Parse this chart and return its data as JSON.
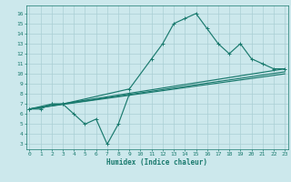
{
  "xlabel": "Humidex (Indice chaleur)",
  "bg_color": "#cce8ec",
  "line_color": "#1a7a6e",
  "grid_color": "#aacfd4",
  "line1_x": [
    0,
    1,
    2,
    3,
    4,
    5,
    6,
    7,
    8,
    9
  ],
  "line1_y": [
    6.5,
    6.5,
    7.0,
    7.0,
    6.0,
    5.0,
    5.5,
    3.0,
    5.0,
    8.0
  ],
  "line2_x": [
    0,
    2,
    3,
    9,
    11,
    12,
    13,
    14,
    15,
    16,
    17,
    18,
    19,
    20,
    21,
    22,
    23
  ],
  "line2_y": [
    6.5,
    7.0,
    7.0,
    8.5,
    11.5,
    13.0,
    15.0,
    15.5,
    16.0,
    14.5,
    13.0,
    12.0,
    13.0,
    11.5,
    11.0,
    10.5,
    10.5
  ],
  "line3_x": [
    0,
    23
  ],
  "line3_y": [
    6.5,
    10.5
  ],
  "line4_x": [
    0,
    23
  ],
  "line4_y": [
    6.5,
    10.2
  ],
  "line5_x": [
    0,
    23
  ],
  "line5_y": [
    6.5,
    10.0
  ],
  "xlim": [
    -0.3,
    23.3
  ],
  "ylim": [
    2.5,
    16.8
  ],
  "yticks": [
    3,
    4,
    5,
    6,
    7,
    8,
    9,
    10,
    11,
    12,
    13,
    14,
    15,
    16
  ],
  "xticks": [
    0,
    1,
    2,
    3,
    4,
    5,
    6,
    7,
    8,
    9,
    10,
    11,
    12,
    13,
    14,
    15,
    16,
    17,
    18,
    19,
    20,
    21,
    22,
    23
  ]
}
